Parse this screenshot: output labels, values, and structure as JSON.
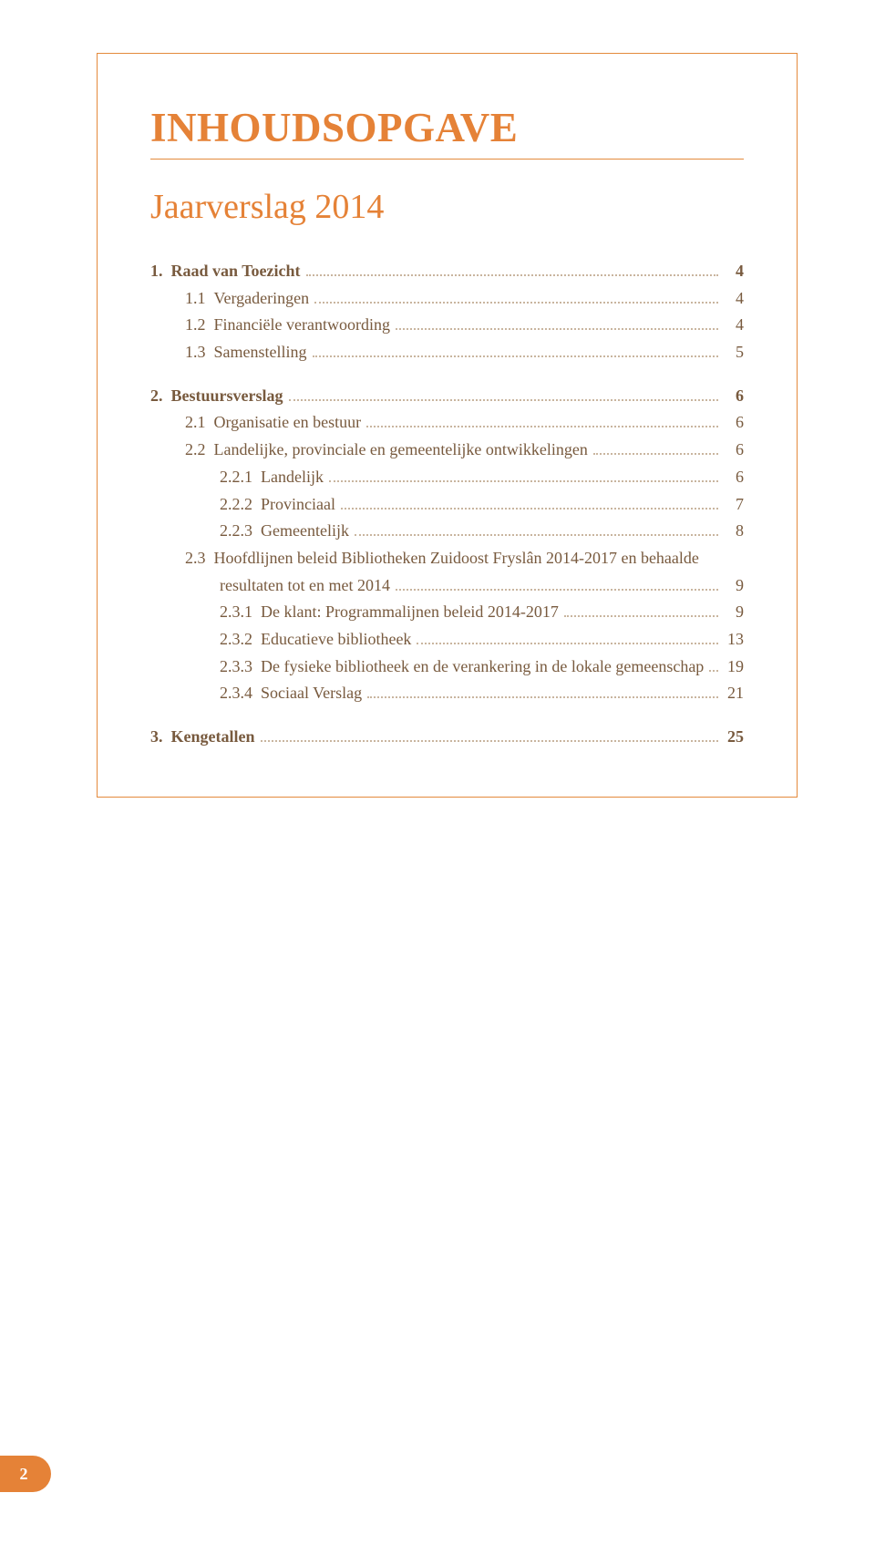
{
  "colors": {
    "accent": "#e58237",
    "border": "#e48a3c",
    "text": "#785a3e",
    "dots": "#c9b59f",
    "page_bg": "#ffffff",
    "badge_text": "#ffffff"
  },
  "typography": {
    "title_fontsize": 45,
    "subtitle_fontsize": 38,
    "body_fontsize": 18,
    "font_family": "Georgia, serif"
  },
  "title": "INHOUDSOPGAVE",
  "subtitle": "Jaarverslag 2014",
  "toc": [
    {
      "type": "entry",
      "bold": true,
      "indent": 0,
      "num": "1.",
      "label": "Raad van Toezicht",
      "page": "4"
    },
    {
      "type": "entry",
      "bold": false,
      "indent": 1,
      "num": "1.1",
      "label": "Vergaderingen",
      "page": "4"
    },
    {
      "type": "entry",
      "bold": false,
      "indent": 1,
      "num": "1.2",
      "label": "Financiële verantwoording",
      "page": "4"
    },
    {
      "type": "entry",
      "bold": false,
      "indent": 1,
      "num": "1.3",
      "label": "Samenstelling",
      "page": "5"
    },
    {
      "type": "gap"
    },
    {
      "type": "entry",
      "bold": true,
      "indent": 0,
      "num": "2.",
      "label": "Bestuursverslag",
      "page": "6"
    },
    {
      "type": "entry",
      "bold": false,
      "indent": 1,
      "num": "2.1",
      "label": "Organisatie en bestuur",
      "page": "6"
    },
    {
      "type": "entry",
      "bold": false,
      "indent": 1,
      "num": "2.2",
      "label": "Landelijke, provinciale en gemeentelijke ontwikkelingen",
      "page": "6"
    },
    {
      "type": "entry",
      "bold": false,
      "indent": 2,
      "num": "2.2.1",
      "label": "Landelijk",
      "page": "6"
    },
    {
      "type": "entry",
      "bold": false,
      "indent": 2,
      "num": "2.2.2",
      "label": "Provinciaal",
      "page": "7"
    },
    {
      "type": "entry",
      "bold": false,
      "indent": 2,
      "num": "2.2.3",
      "label": "Gemeentelijk",
      "page": "8"
    },
    {
      "type": "entry",
      "bold": false,
      "indent": 1,
      "num": "2.3",
      "label": "Hoofdlijnen beleid Bibliotheken Zuidoost Fryslân 2014-2017 en behaalde",
      "page": ""
    },
    {
      "type": "wrap",
      "bold": false,
      "label": "resultaten tot en met 2014",
      "page": "9"
    },
    {
      "type": "entry",
      "bold": false,
      "indent": 2,
      "num": "2.3.1",
      "label": "De klant: Programmalijnen beleid 2014-2017",
      "page": "9"
    },
    {
      "type": "entry",
      "bold": false,
      "indent": 2,
      "num": "2.3.2",
      "label": "Educatieve bibliotheek",
      "page": "13"
    },
    {
      "type": "entry",
      "bold": false,
      "indent": 2,
      "num": "2.3.3",
      "label": "De fysieke bibliotheek en de verankering in de lokale gemeenschap",
      "page": "19"
    },
    {
      "type": "entry",
      "bold": false,
      "indent": 2,
      "num": "2.3.4",
      "label": "Sociaal Verslag",
      "page": "21"
    },
    {
      "type": "gap"
    },
    {
      "type": "entry",
      "bold": true,
      "indent": 0,
      "num": "3.",
      "label": "Kengetallen",
      "page": "25"
    }
  ],
  "footer_page": "2"
}
